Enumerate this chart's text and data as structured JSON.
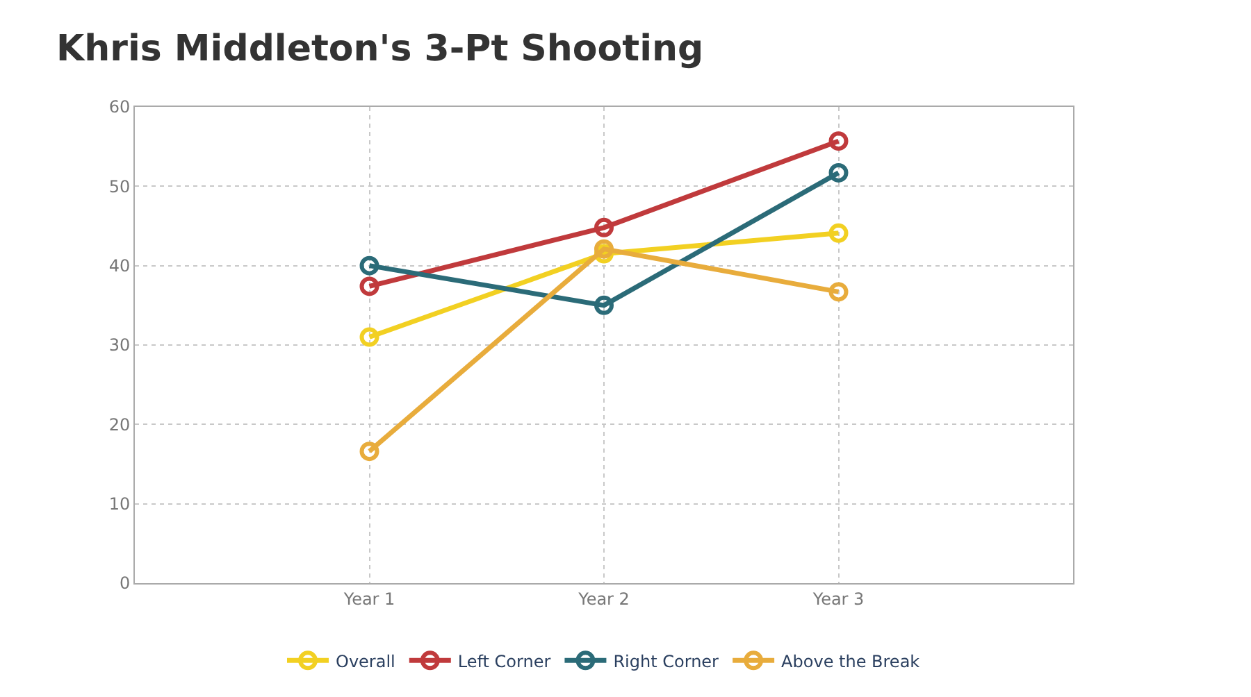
{
  "chart_data": {
    "type": "line",
    "title": "Khris Middleton's 3-Pt Shooting",
    "categories": [
      "Year 1",
      "Year 2",
      "Year 3"
    ],
    "series": [
      {
        "name": "Overall",
        "color": "#f2d022",
        "values": [
          31,
          41.5,
          44.1
        ]
      },
      {
        "name": "Left Corner",
        "color": "#c03a3c",
        "values": [
          37.4,
          44.8,
          55.7
        ]
      },
      {
        "name": "Right Corner",
        "color": "#2b6b78",
        "values": [
          40,
          35,
          51.7
        ]
      },
      {
        "name": "Above the Break",
        "color": "#e8ac3c",
        "values": [
          16.6,
          42.1,
          36.7
        ]
      }
    ],
    "ylim": [
      0,
      60
    ],
    "yticks": [
      0,
      10,
      20,
      30,
      40,
      50,
      60
    ],
    "grid": true,
    "legend": "bottom",
    "marker": "circle",
    "line_style": "solid"
  }
}
